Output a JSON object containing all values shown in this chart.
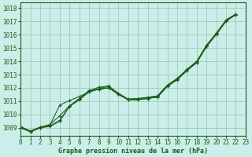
{
  "title": "Graphe pression niveau de la mer (hPa)",
  "bg_color": "#cceee8",
  "grid_color": "#99ccbb",
  "line_color": "#1a5c1a",
  "marker_color": "#1a5c1a",
  "xlim": [
    0,
    23
  ],
  "ylim": [
    1008.4,
    1018.4
  ],
  "yticks": [
    1009,
    1010,
    1011,
    1012,
    1013,
    1014,
    1015,
    1016,
    1017,
    1018
  ],
  "xticks": [
    0,
    1,
    2,
    3,
    4,
    5,
    6,
    7,
    8,
    9,
    10,
    11,
    12,
    13,
    14,
    15,
    16,
    17,
    18,
    19,
    20,
    21,
    22,
    23
  ],
  "series": [
    {
      "x": [
        0,
        1,
        2,
        3,
        4,
        5,
        6,
        7,
        8,
        9,
        10,
        11,
        12,
        13,
        14,
        15,
        16,
        17,
        18,
        19,
        20,
        21,
        22
      ],
      "y": [
        1009.0,
        1008.7,
        1009.0,
        1009.1,
        1009.5,
        1010.6,
        1011.1,
        1011.7,
        1011.9,
        1012.0,
        1011.5,
        1011.1,
        1011.1,
        1011.2,
        1011.3,
        1012.1,
        1012.6,
        1013.3,
        1013.9,
        1015.1,
        1016.0,
        1017.0,
        1017.5
      ]
    },
    {
      "x": [
        0,
        1,
        2,
        3,
        4,
        5,
        6,
        7,
        8,
        9,
        10,
        11,
        12,
        13,
        14,
        15,
        16,
        17,
        18,
        19,
        20,
        21,
        22
      ],
      "y": [
        1009.1,
        1008.75,
        1009.05,
        1009.2,
        1010.7,
        1011.05,
        1011.35,
        1011.7,
        1011.9,
        1012.0,
        1011.55,
        1011.1,
        1011.15,
        1011.2,
        1011.35,
        1012.15,
        1012.65,
        1013.3,
        1013.9,
        1015.1,
        1016.05,
        1017.05,
        1017.5
      ]
    },
    {
      "x": [
        0,
        1,
        2,
        3,
        4,
        5,
        6,
        7,
        8,
        9,
        10,
        11,
        12,
        13,
        14,
        15,
        16,
        17,
        18,
        19,
        20,
        21,
        22
      ],
      "y": [
        1009.05,
        1008.75,
        1009.05,
        1009.25,
        1009.9,
        1010.65,
        1011.15,
        1011.75,
        1011.95,
        1012.1,
        1011.6,
        1011.15,
        1011.2,
        1011.25,
        1011.4,
        1012.2,
        1012.7,
        1013.35,
        1013.95,
        1015.2,
        1016.1,
        1017.1,
        1017.55
      ]
    },
    {
      "x": [
        0,
        1,
        2,
        3,
        4,
        5,
        6,
        7,
        8,
        9,
        10,
        11,
        12,
        13,
        14,
        15,
        16,
        17,
        18,
        19,
        20,
        21,
        22
      ],
      "y": [
        1009.0,
        1008.7,
        1009.0,
        1009.15,
        1009.55,
        1010.65,
        1011.2,
        1011.8,
        1012.05,
        1012.15,
        1011.55,
        1011.15,
        1011.2,
        1011.3,
        1011.4,
        1012.2,
        1012.7,
        1013.4,
        1014.0,
        1015.2,
        1016.1,
        1017.1,
        1017.55
      ]
    }
  ],
  "title_fontsize": 6.0,
  "tick_fontsize": 5.5
}
